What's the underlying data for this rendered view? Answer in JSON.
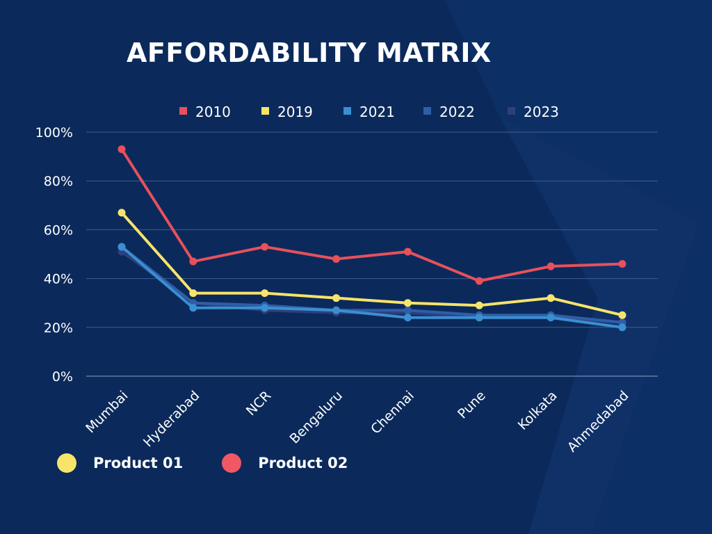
{
  "chart_data": {
    "type": "line",
    "title": "AFFORDABILITY MATRIX",
    "xlabel": "",
    "ylabel": "",
    "categories": [
      "Mumbai",
      "Hyderabad",
      "NCR",
      "Bengaluru",
      "Chennai",
      "Pune",
      "Kolkata",
      "Ahmedabad"
    ],
    "y_ticks": [
      "0%",
      "20%",
      "40%",
      "60%",
      "80%",
      "100%"
    ],
    "ylim": [
      0,
      100
    ],
    "grid": true,
    "legend_position": "top",
    "series": [
      {
        "name": "2010",
        "color": "#e8505b",
        "values": [
          93,
          47,
          53,
          48,
          51,
          39,
          45,
          46
        ]
      },
      {
        "name": "2019",
        "color": "#f7e469",
        "values": [
          67,
          34,
          34,
          32,
          30,
          29,
          32,
          25
        ]
      },
      {
        "name": "2021",
        "color": "#3a8fd1",
        "values": [
          53,
          28,
          28,
          27,
          24,
          24,
          24,
          20
        ]
      },
      {
        "name": "2022",
        "color": "#2f5ea8",
        "values": [
          53,
          30,
          29,
          27,
          27,
          25,
          25,
          22
        ]
      },
      {
        "name": "2023",
        "color": "#2e3f7c",
        "values": [
          51,
          30,
          27,
          26,
          26,
          24,
          24,
          22
        ]
      }
    ]
  },
  "bottom_legend": [
    {
      "label": "Product 01",
      "color": "#f7e469"
    },
    {
      "label": "Product 02",
      "color": "#f05864"
    }
  ]
}
